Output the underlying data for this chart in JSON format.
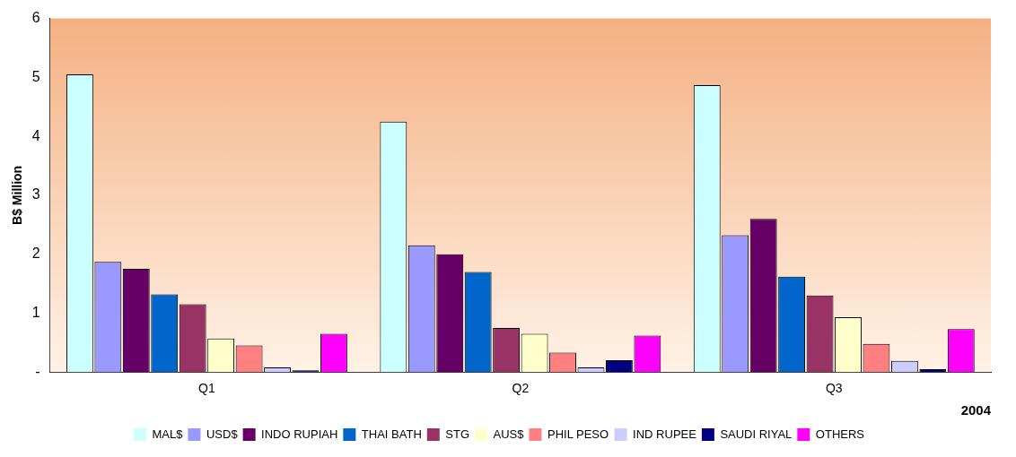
{
  "chart_data": {
    "type": "bar",
    "categories": [
      "Q1",
      "Q2",
      "Q3"
    ],
    "series": [
      {
        "name": "MAL$",
        "color": "#ccffff",
        "values": [
          5.05,
          4.25,
          4.87
        ]
      },
      {
        "name": "USD$",
        "color": "#9999ff",
        "values": [
          1.87,
          2.15,
          2.32
        ]
      },
      {
        "name": "INDO RUPIAH",
        "color": "#660066",
        "values": [
          1.75,
          2.0,
          2.6
        ]
      },
      {
        "name": "THAI BATH",
        "color": "#0066cc",
        "values": [
          1.32,
          1.7,
          1.62
        ]
      },
      {
        "name": "STG",
        "color": "#993366",
        "values": [
          1.15,
          0.75,
          1.3
        ]
      },
      {
        "name": "AUS$",
        "color": "#ffffcc",
        "values": [
          0.57,
          0.65,
          0.93
        ]
      },
      {
        "name": "PHIL PESO",
        "color": "#ff8080",
        "values": [
          0.45,
          0.33,
          0.48
        ]
      },
      {
        "name": "IND RUPEE",
        "color": "#ccccff",
        "values": [
          0.08,
          0.08,
          0.19
        ]
      },
      {
        "name": "SAUDI RIYAL",
        "color": "#000080",
        "values": [
          0.03,
          0.2,
          0.05
        ]
      },
      {
        "name": "OTHERS",
        "color": "#ff00ff",
        "values": [
          0.65,
          0.62,
          0.73
        ]
      }
    ],
    "ylabel": "B$ Million",
    "xlabel": "2004",
    "ylim": [
      0,
      6
    ],
    "yticks": [
      {
        "value": 0,
        "label": "-"
      },
      1,
      2,
      3,
      4,
      5,
      6
    ],
    "grid": false,
    "legend": "bottom"
  }
}
